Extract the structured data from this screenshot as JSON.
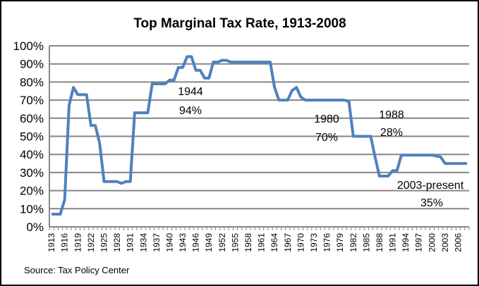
{
  "chart_data": {
    "type": "line",
    "title": "Top Marginal Tax Rate, 1913-2008",
    "xlabel": "",
    "ylabel": "",
    "ylim": [
      0,
      100
    ],
    "yticks": [
      "0%",
      "10%",
      "20%",
      "30%",
      "40%",
      "50%",
      "60%",
      "70%",
      "80%",
      "90%",
      "100%"
    ],
    "xtick_labels": [
      "1913",
      "1916",
      "1919",
      "1922",
      "1925",
      "1928",
      "1931",
      "1934",
      "1937",
      "1940",
      "1943",
      "1946",
      "1949",
      "1952",
      "1955",
      "1958",
      "1961",
      "1964",
      "1967",
      "1970",
      "1973",
      "1976",
      "1979",
      "1982",
      "1985",
      "1988",
      "1991",
      "1994",
      "1997",
      "2000",
      "2003",
      "2006"
    ],
    "grid": true,
    "series": [
      {
        "name": "Top Marginal Tax Rate",
        "color": "#4F81BD",
        "x": [
          1913,
          1914,
          1915,
          1916,
          1917,
          1918,
          1919,
          1920,
          1921,
          1922,
          1923,
          1924,
          1925,
          1926,
          1927,
          1928,
          1929,
          1930,
          1931,
          1932,
          1933,
          1934,
          1935,
          1936,
          1937,
          1938,
          1939,
          1940,
          1941,
          1942,
          1943,
          1944,
          1945,
          1946,
          1947,
          1948,
          1949,
          1950,
          1951,
          1952,
          1953,
          1954,
          1955,
          1956,
          1957,
          1958,
          1959,
          1960,
          1961,
          1962,
          1963,
          1964,
          1965,
          1966,
          1967,
          1968,
          1969,
          1970,
          1971,
          1972,
          1973,
          1974,
          1975,
          1976,
          1977,
          1978,
          1979,
          1980,
          1981,
          1982,
          1983,
          1984,
          1985,
          1986,
          1987,
          1988,
          1989,
          1990,
          1991,
          1992,
          1993,
          1994,
          1995,
          1996,
          1997,
          1998,
          1999,
          2000,
          2001,
          2002,
          2003,
          2004,
          2005,
          2006,
          2007,
          2008
        ],
        "values": [
          7,
          7,
          7,
          15,
          67,
          77,
          73,
          73,
          73,
          56,
          56,
          46,
          25,
          25,
          25,
          25,
          24,
          25,
          25,
          63,
          63,
          63,
          63,
          79,
          79,
          79,
          79,
          81.1,
          81,
          88,
          88,
          94,
          94,
          86.45,
          86.45,
          82.13,
          82.13,
          91,
          91,
          92,
          92,
          91,
          91,
          91,
          91,
          91,
          91,
          91,
          91,
          91,
          91,
          77,
          70,
          70,
          70,
          75.25,
          77,
          71.75,
          70,
          70,
          70,
          70,
          70,
          70,
          70,
          70,
          70,
          70,
          69.13,
          50,
          50,
          50,
          50,
          50,
          38.5,
          28,
          28,
          28,
          31,
          31,
          39.6,
          39.6,
          39.6,
          39.6,
          39.6,
          39.6,
          39.6,
          39.6,
          39.1,
          38.6,
          35,
          35,
          35,
          35,
          35,
          35
        ]
      }
    ],
    "annotations": [
      {
        "lines": [
          "1944",
          "94%"
        ]
      },
      {
        "lines": [
          "1980",
          "70%"
        ]
      },
      {
        "lines": [
          "1988",
          "28%"
        ]
      },
      {
        "lines": [
          "2003-present",
          "35%"
        ]
      }
    ],
    "source": "Source:  Tax Policy Center"
  }
}
